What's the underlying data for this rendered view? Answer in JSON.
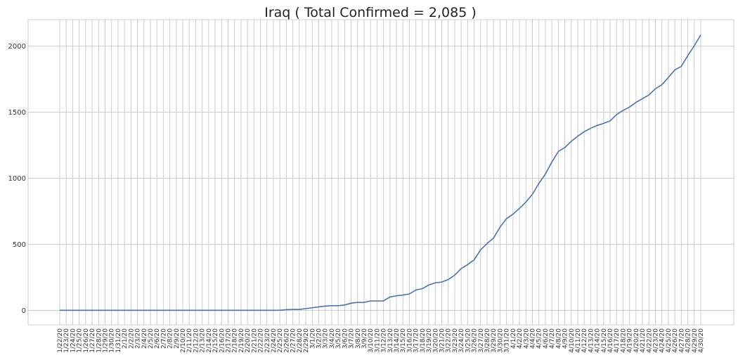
{
  "chart_data": {
    "type": "line",
    "title": "Iraq ( Total Confirmed = 2,085 )",
    "xlabel": "",
    "ylabel": "",
    "ylim": [
      -110,
      2200
    ],
    "yticks": [
      0,
      500,
      1000,
      1500,
      2000
    ],
    "grid": true,
    "color": "#4c72b0",
    "categories": [
      "1/22/20",
      "1/23/20",
      "1/24/20",
      "1/25/20",
      "1/26/20",
      "1/27/20",
      "1/28/20",
      "1/29/20",
      "1/30/20",
      "1/31/20",
      "2/1/20",
      "2/2/20",
      "2/3/20",
      "2/4/20",
      "2/5/20",
      "2/6/20",
      "2/7/20",
      "2/8/20",
      "2/9/20",
      "2/10/20",
      "2/11/20",
      "2/12/20",
      "2/13/20",
      "2/14/20",
      "2/15/20",
      "2/16/20",
      "2/17/20",
      "2/18/20",
      "2/19/20",
      "2/20/20",
      "2/21/20",
      "2/22/20",
      "2/23/20",
      "2/24/20",
      "2/25/20",
      "2/26/20",
      "2/27/20",
      "2/28/20",
      "2/29/20",
      "3/1/20",
      "3/2/20",
      "3/3/20",
      "3/4/20",
      "3/5/20",
      "3/6/20",
      "3/7/20",
      "3/8/20",
      "3/9/20",
      "3/10/20",
      "3/11/20",
      "3/12/20",
      "3/13/20",
      "3/14/20",
      "3/15/20",
      "3/16/20",
      "3/17/20",
      "3/18/20",
      "3/19/20",
      "3/20/20",
      "3/21/20",
      "3/22/20",
      "3/23/20",
      "3/24/20",
      "3/25/20",
      "3/26/20",
      "3/27/20",
      "3/28/20",
      "3/29/20",
      "3/30/20",
      "3/31/20",
      "4/1/20",
      "4/2/20",
      "4/3/20",
      "4/4/20",
      "4/5/20",
      "4/6/20",
      "4/7/20",
      "4/8/20",
      "4/9/20",
      "4/10/20",
      "4/11/20",
      "4/12/20",
      "4/13/20",
      "4/14/20",
      "4/15/20",
      "4/16/20",
      "4/17/20",
      "4/18/20",
      "4/19/20",
      "4/20/20",
      "4/21/20",
      "4/22/20",
      "4/23/20",
      "4/24/20",
      "4/25/20",
      "4/26/20",
      "4/27/20",
      "4/28/20",
      "4/29/20",
      "4/30/20"
    ],
    "series": [
      {
        "values": [
          0,
          0,
          0,
          0,
          0,
          0,
          0,
          0,
          0,
          0,
          0,
          0,
          0,
          0,
          0,
          0,
          0,
          0,
          0,
          0,
          0,
          0,
          0,
          0,
          0,
          0,
          0,
          0,
          0,
          0,
          0,
          0,
          0,
          0,
          1,
          5,
          7,
          7,
          13,
          19,
          26,
          32,
          35,
          35,
          40,
          54,
          60,
          60,
          71,
          71,
          71,
          101,
          110,
          116,
          124,
          154,
          164,
          192,
          208,
          214,
          233,
          266,
          316,
          346,
          382,
          458,
          506,
          547,
          630,
          694,
          728,
          772,
          820,
          878,
          961,
          1031,
          1122,
          1202,
          1232,
          1279,
          1318,
          1352,
          1378,
          1400,
          1415,
          1434,
          1482,
          1513,
          1539,
          1574,
          1602,
          1631,
          1677,
          1708,
          1763,
          1820,
          1847,
          1928,
          2003,
          2085
        ]
      }
    ]
  }
}
